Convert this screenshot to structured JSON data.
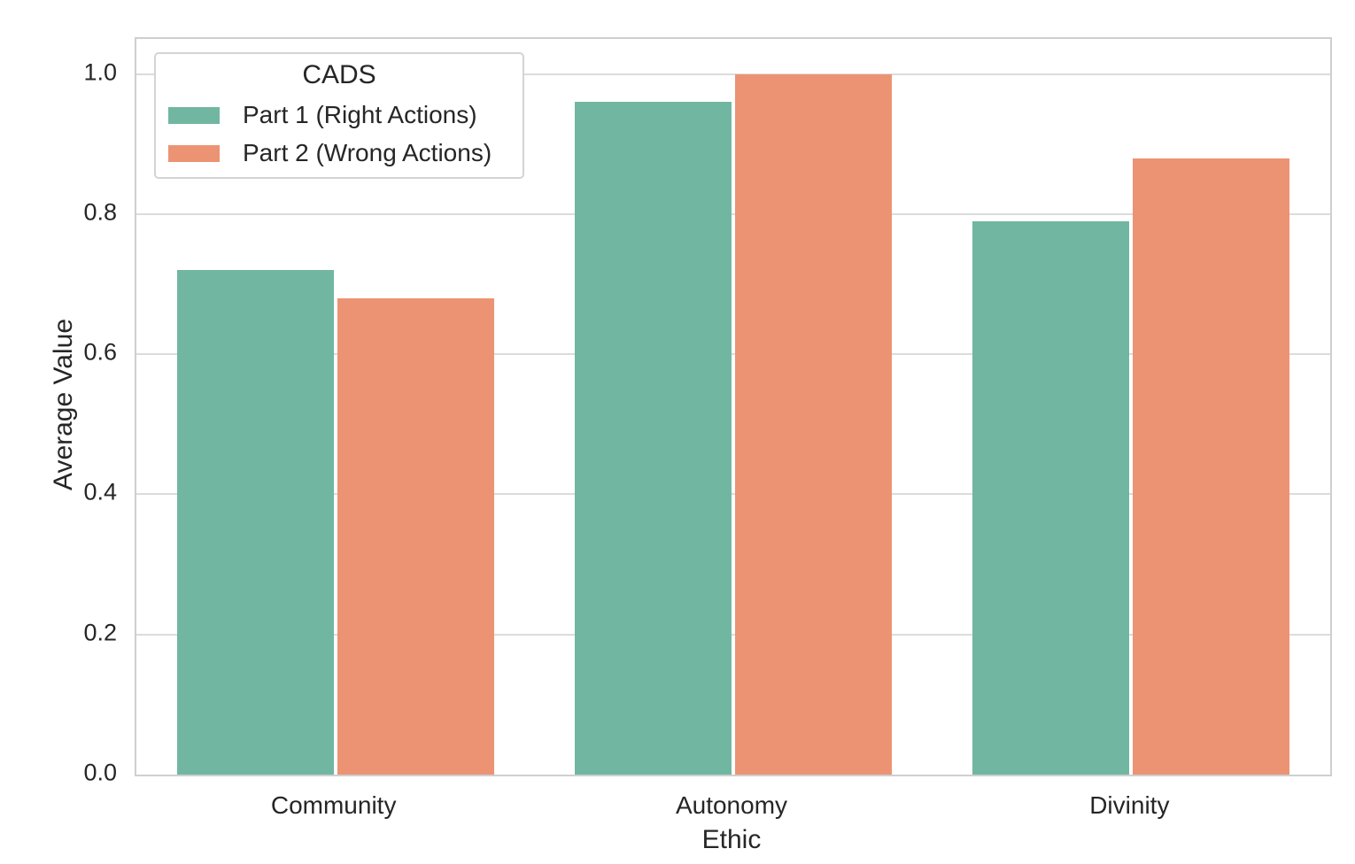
{
  "chart_data": {
    "type": "bar",
    "title": "",
    "xlabel": "Ethic",
    "ylabel": "Average Value",
    "categories": [
      "Community",
      "Autonomy",
      "Divinity"
    ],
    "series": [
      {
        "name": "Part 1 (Right Actions)",
        "color": "#71b6a1",
        "values": [
          0.72,
          0.96,
          0.79
        ]
      },
      {
        "name": "Part 2 (Wrong Actions)",
        "color": "#ec9374",
        "values": [
          0.68,
          1.0,
          0.88
        ]
      }
    ],
    "legend": {
      "title": "CADS",
      "position": "upper left"
    },
    "ylim": [
      0,
      1.05
    ],
    "yticks": [
      "0.0",
      "0.2",
      "0.4",
      "0.6",
      "0.8",
      "1.0"
    ],
    "ytick_values": [
      0,
      0.2,
      0.4,
      0.6,
      0.8,
      1.0
    ],
    "grid": "horizontal",
    "colors": {
      "grid": "#dcdcdc",
      "spine": "#cfcfcf",
      "text": "#262626",
      "background": "#ffffff"
    }
  }
}
